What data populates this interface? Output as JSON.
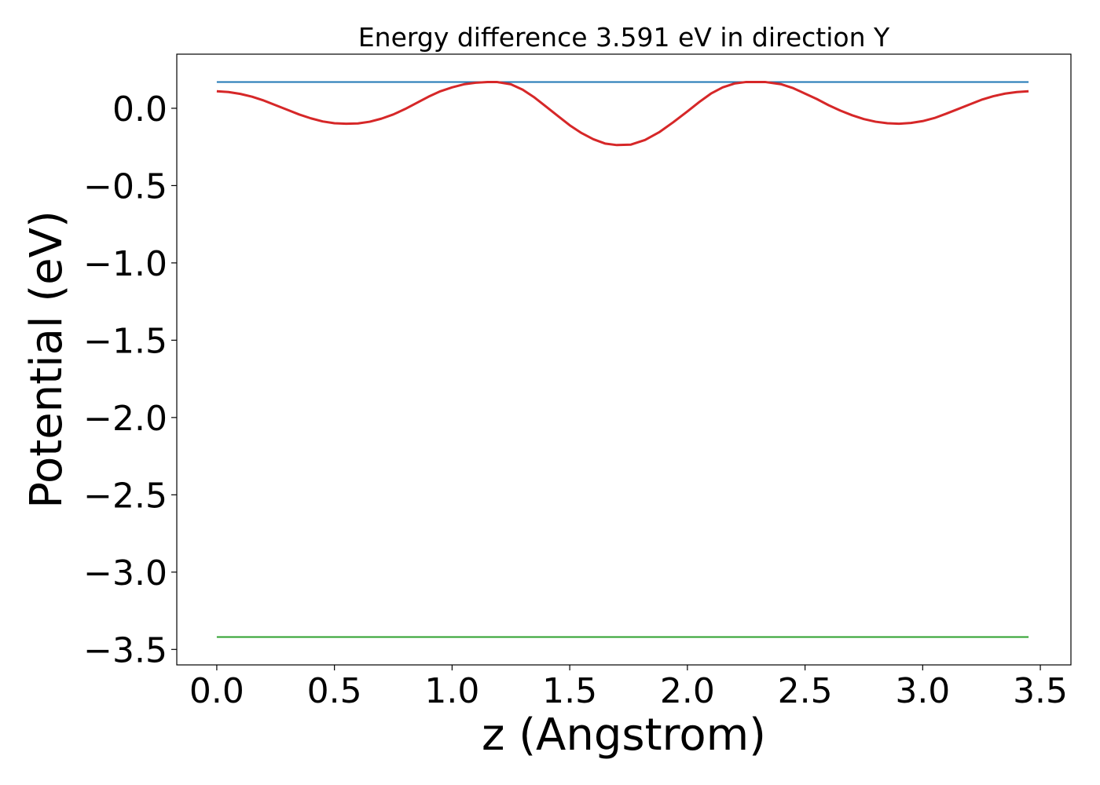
{
  "chart_data": {
    "type": "line",
    "title": "Energy difference 3.591 eV in direction Y",
    "xlabel": "z (Angstrom)",
    "ylabel": "Potential (eV)",
    "xlim": [
      -0.17,
      3.63
    ],
    "ylim": [
      -3.6,
      0.35
    ],
    "xticks": [
      0.0,
      0.5,
      1.0,
      1.5,
      2.0,
      2.5,
      3.0,
      3.5
    ],
    "xtick_labels": [
      "0.0",
      "0.5",
      "1.0",
      "1.5",
      "2.0",
      "2.5",
      "3.0",
      "3.5"
    ],
    "yticks": [
      0.0,
      -0.5,
      -1.0,
      -1.5,
      -2.0,
      -2.5,
      -3.0,
      -3.5
    ],
    "ytick_labels": [
      "0.0",
      "−0.5",
      "−1.0",
      "−1.5",
      "−2.0",
      "−2.5",
      "−3.0",
      "−3.5"
    ],
    "grid": false,
    "legend": "none",
    "series": [
      {
        "color": "#1f77b4",
        "x": [
          0.0,
          3.45
        ],
        "y": [
          0.17,
          0.17
        ]
      },
      {
        "color": "#d62728",
        "x": [
          0.0,
          0.05,
          0.1,
          0.15,
          0.2,
          0.25,
          0.3,
          0.35,
          0.4,
          0.45,
          0.5,
          0.55,
          0.6,
          0.65,
          0.7,
          0.75,
          0.8,
          0.85,
          0.9,
          0.95,
          1.0,
          1.05,
          1.1,
          1.15,
          1.19,
          1.25,
          1.3,
          1.35,
          1.4,
          1.45,
          1.5,
          1.55,
          1.6,
          1.65,
          1.7,
          1.76,
          1.82,
          1.88,
          1.94,
          2.0,
          2.05,
          2.1,
          2.15,
          2.2,
          2.25,
          2.33,
          2.4,
          2.45,
          2.5,
          2.55,
          2.6,
          2.65,
          2.7,
          2.75,
          2.8,
          2.85,
          2.9,
          2.95,
          3.0,
          3.05,
          3.1,
          3.15,
          3.2,
          3.25,
          3.3,
          3.35,
          3.4,
          3.45
        ],
        "y": [
          0.11,
          0.105,
          0.093,
          0.075,
          0.05,
          0.02,
          -0.01,
          -0.04,
          -0.065,
          -0.085,
          -0.097,
          -0.1,
          -0.098,
          -0.087,
          -0.067,
          -0.04,
          -0.005,
          0.035,
          0.075,
          0.11,
          0.135,
          0.155,
          0.165,
          0.17,
          0.17,
          0.155,
          0.12,
          0.07,
          0.01,
          -0.05,
          -0.11,
          -0.16,
          -0.2,
          -0.228,
          -0.238,
          -0.235,
          -0.205,
          -0.155,
          -0.09,
          -0.02,
          0.04,
          0.095,
          0.135,
          0.16,
          0.17,
          0.17,
          0.155,
          0.13,
          0.095,
          0.06,
          0.02,
          -0.015,
          -0.045,
          -0.07,
          -0.087,
          -0.097,
          -0.1,
          -0.095,
          -0.083,
          -0.063,
          -0.035,
          -0.005,
          0.025,
          0.055,
          0.078,
          0.095,
          0.105,
          0.11
        ]
      },
      {
        "color": "#2ca02c",
        "x": [
          0.0,
          3.45
        ],
        "y": [
          -3.42,
          -3.42
        ]
      }
    ]
  }
}
